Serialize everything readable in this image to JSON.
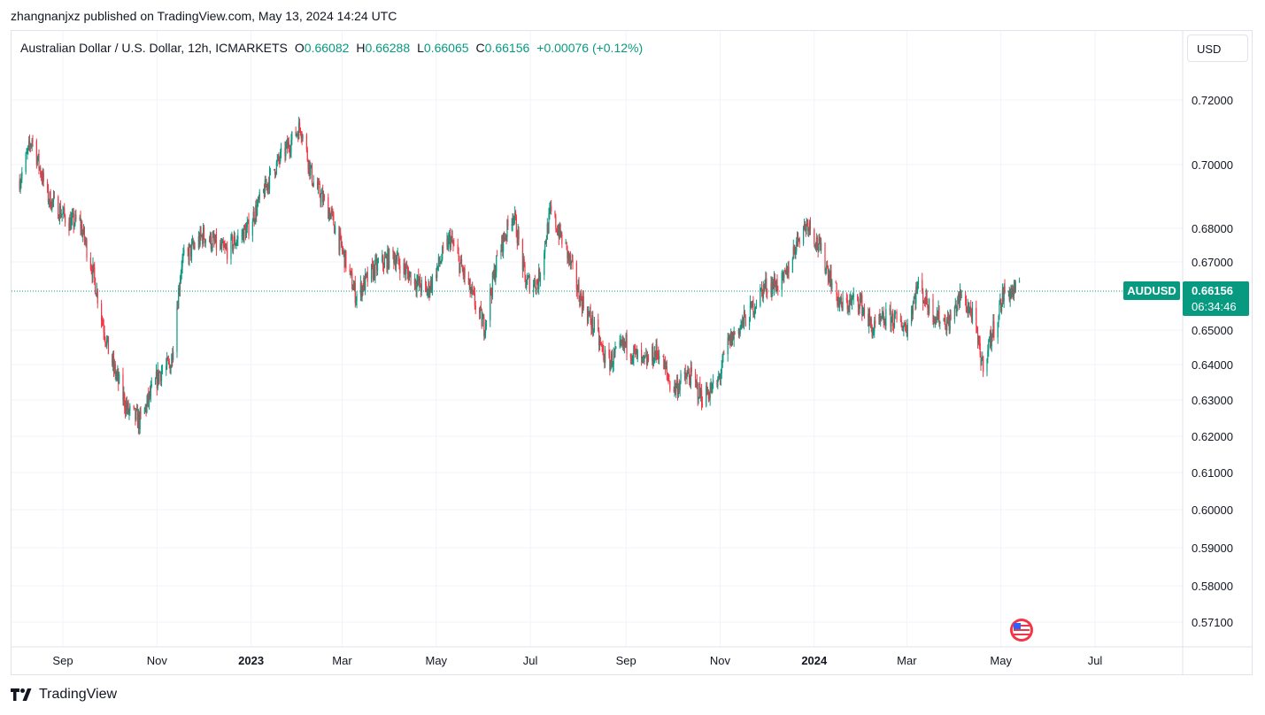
{
  "header": {
    "published_text": "zhangnanjxz published on TradingView.com, May 13, 2024 14:24 UTC"
  },
  "legend": {
    "symbol_text": "Australian Dollar / U.S. Dollar, 12h, ICMARKETS",
    "open_label": "O",
    "open_value": "0.66082",
    "high_label": "H",
    "high_value": "0.66288",
    "low_label": "L",
    "low_value": "0.66065",
    "close_label": "C",
    "close_value": "0.66156",
    "change_text": "+0.00076 (+0.12%)"
  },
  "currency_button": "USD",
  "price_tag": {
    "symbol": "AUDUSD",
    "price": "0.66156",
    "countdown": "06:34:46"
  },
  "colors": {
    "up": "#089981",
    "down": "#f23645",
    "grid": "#f0f3fa",
    "tag": "#089981"
  },
  "brand": {
    "name": "TradingView"
  },
  "chart_data": {
    "type": "candlestick",
    "symbol": "AUDUSD",
    "timeframe": "12h",
    "y_ticks": [
      0.72,
      0.7,
      0.68,
      0.67,
      0.65,
      0.64,
      0.63,
      0.62,
      0.61,
      0.6,
      0.59,
      0.58,
      0.571
    ],
    "y_tick_labels": [
      "0.72000",
      "0.70000",
      "0.68000",
      "0.67000",
      "0.65000",
      "0.64000",
      "0.63000",
      "0.62000",
      "0.61000",
      "0.60000",
      "0.59000",
      "0.58000",
      "0.57100"
    ],
    "x_ticks": [
      {
        "label": "Sep",
        "date": "2022-09-01",
        "bold": false
      },
      {
        "label": "Nov",
        "date": "2022-11-01",
        "bold": false
      },
      {
        "label": "2023",
        "date": "2023-01-01",
        "bold": true
      },
      {
        "label": "Mar",
        "date": "2023-03-01",
        "bold": false
      },
      {
        "label": "May",
        "date": "2023-05-01",
        "bold": false
      },
      {
        "label": "Jul",
        "date": "2023-07-01",
        "bold": false
      },
      {
        "label": "Sep",
        "date": "2023-09-01",
        "bold": false
      },
      {
        "label": "Nov",
        "date": "2023-11-01",
        "bold": false
      },
      {
        "label": "2024",
        "date": "2024-01-01",
        "bold": true
      },
      {
        "label": "Mar",
        "date": "2024-03-01",
        "bold": false
      },
      {
        "label": "May",
        "date": "2024-05-01",
        "bold": false
      },
      {
        "label": "Jul",
        "date": "2024-07-01",
        "bold": false
      }
    ],
    "x_range": [
      "2022-08-03",
      "2024-09-02"
    ],
    "last_price": 0.66156,
    "trend": [
      {
        "date": "2022-08-04",
        "value": 0.695
      },
      {
        "date": "2022-08-12",
        "value": 0.708
      },
      {
        "date": "2022-08-22",
        "value": 0.69
      },
      {
        "date": "2022-09-05",
        "value": 0.682
      },
      {
        "date": "2022-09-12",
        "value": 0.682
      },
      {
        "date": "2022-09-20",
        "value": 0.668
      },
      {
        "date": "2022-10-01",
        "value": 0.643
      },
      {
        "date": "2022-10-13",
        "value": 0.627
      },
      {
        "date": "2022-10-21",
        "value": 0.624
      },
      {
        "date": "2022-11-03",
        "value": 0.638
      },
      {
        "date": "2022-11-10",
        "value": 0.64
      },
      {
        "date": "2022-11-17",
        "value": 0.67
      },
      {
        "date": "2022-12-01",
        "value": 0.678
      },
      {
        "date": "2022-12-15",
        "value": 0.673
      },
      {
        "date": "2022-12-30",
        "value": 0.68
      },
      {
        "date": "2023-01-15",
        "value": 0.698
      },
      {
        "date": "2023-02-02",
        "value": 0.712
      },
      {
        "date": "2023-02-10",
        "value": 0.695
      },
      {
        "date": "2023-02-22",
        "value": 0.684
      },
      {
        "date": "2023-03-02",
        "value": 0.672
      },
      {
        "date": "2023-03-10",
        "value": 0.66
      },
      {
        "date": "2023-03-22",
        "value": 0.668
      },
      {
        "date": "2023-04-03",
        "value": 0.672
      },
      {
        "date": "2023-04-12",
        "value": 0.667
      },
      {
        "date": "2023-04-25",
        "value": 0.661
      },
      {
        "date": "2023-05-10",
        "value": 0.677
      },
      {
        "date": "2023-05-20",
        "value": 0.665
      },
      {
        "date": "2023-06-01",
        "value": 0.651
      },
      {
        "date": "2023-06-10",
        "value": 0.672
      },
      {
        "date": "2023-06-20",
        "value": 0.685
      },
      {
        "date": "2023-06-28",
        "value": 0.664
      },
      {
        "date": "2023-07-06",
        "value": 0.664
      },
      {
        "date": "2023-07-14",
        "value": 0.685
      },
      {
        "date": "2023-07-24",
        "value": 0.674
      },
      {
        "date": "2023-08-02",
        "value": 0.66
      },
      {
        "date": "2023-08-10",
        "value": 0.652
      },
      {
        "date": "2023-08-20",
        "value": 0.64
      },
      {
        "date": "2023-09-01",
        "value": 0.646
      },
      {
        "date": "2023-09-12",
        "value": 0.64
      },
      {
        "date": "2023-09-22",
        "value": 0.644
      },
      {
        "date": "2023-10-01",
        "value": 0.633
      },
      {
        "date": "2023-10-12",
        "value": 0.637
      },
      {
        "date": "2023-10-20",
        "value": 0.631
      },
      {
        "date": "2023-10-30",
        "value": 0.634
      },
      {
        "date": "2023-11-06",
        "value": 0.646
      },
      {
        "date": "2023-11-20",
        "value": 0.655
      },
      {
        "date": "2023-11-30",
        "value": 0.663
      },
      {
        "date": "2023-12-12",
        "value": 0.664
      },
      {
        "date": "2023-12-22",
        "value": 0.678
      },
      {
        "date": "2023-12-28",
        "value": 0.682
      },
      {
        "date": "2024-01-08",
        "value": 0.67
      },
      {
        "date": "2024-01-18",
        "value": 0.657
      },
      {
        "date": "2024-01-30",
        "value": 0.659
      },
      {
        "date": "2024-02-08",
        "value": 0.65
      },
      {
        "date": "2024-02-18",
        "value": 0.654
      },
      {
        "date": "2024-03-01",
        "value": 0.651
      },
      {
        "date": "2024-03-08",
        "value": 0.663
      },
      {
        "date": "2024-03-18",
        "value": 0.655
      },
      {
        "date": "2024-03-28",
        "value": 0.652
      },
      {
        "date": "2024-04-05",
        "value": 0.66
      },
      {
        "date": "2024-04-12",
        "value": 0.655
      },
      {
        "date": "2024-04-19",
        "value": 0.64
      },
      {
        "date": "2024-04-26",
        "value": 0.65
      },
      {
        "date": "2024-05-03",
        "value": 0.661
      },
      {
        "date": "2024-05-13",
        "value": 0.6616
      }
    ]
  }
}
